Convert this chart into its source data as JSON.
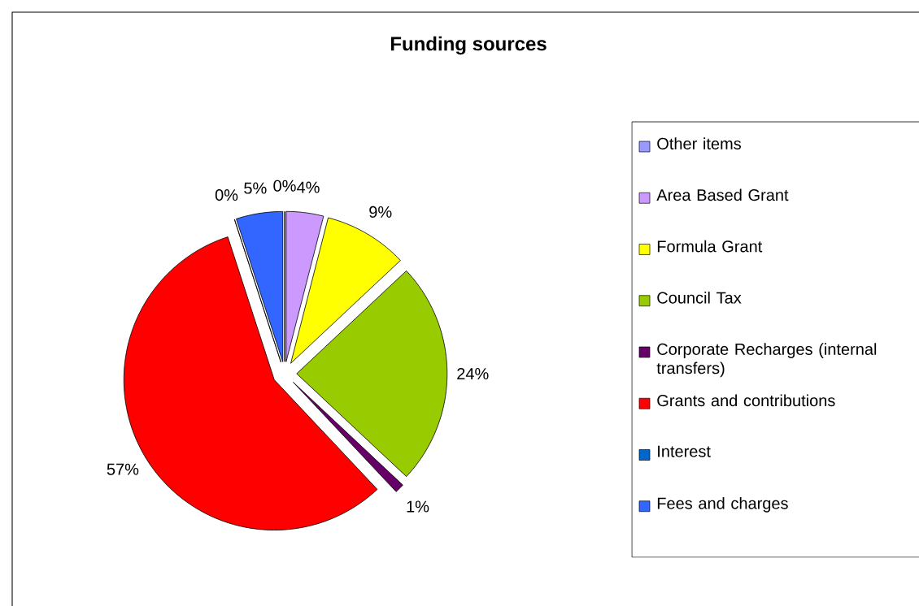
{
  "chart_data": {
    "type": "pie",
    "title": "Funding sources",
    "categories": [
      "Other items",
      "Area Based Grant",
      "Formula Grant",
      "Council Tax",
      "Corporate Recharges (internal transfers)",
      "Grants and contributions",
      "Interest",
      "Fees and charges"
    ],
    "values": [
      0,
      4,
      9,
      24,
      1,
      57,
      0,
      5
    ],
    "value_labels": [
      "0%",
      "4%",
      "9%",
      "24%",
      "1%",
      "57%",
      "0%",
      "5%"
    ],
    "colors": [
      "#9999ff",
      "#cc99ff",
      "#ffff00",
      "#99cc00",
      "#660066",
      "#ff0000",
      "#0066cc",
      "#3366ff"
    ],
    "legend": "right"
  }
}
